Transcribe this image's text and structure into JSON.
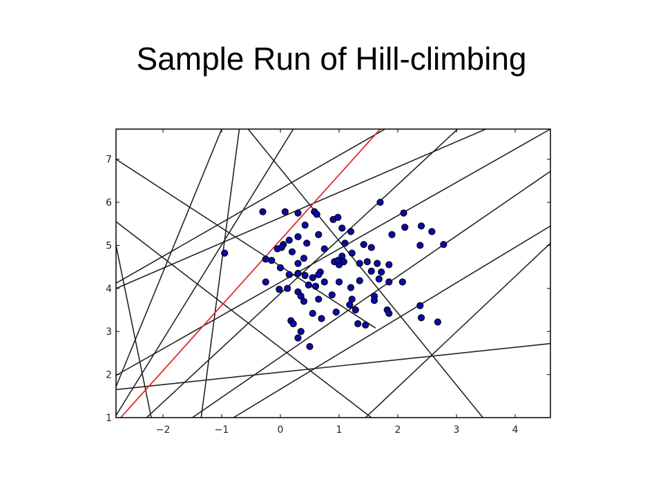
{
  "slide": {
    "title": "Sample Run of Hill-climbing"
  },
  "chart_data": {
    "type": "scatter",
    "title": "",
    "xlabel": "",
    "ylabel": "",
    "xlim": [
      -2.8,
      4.6
    ],
    "ylim": [
      1,
      7.7
    ],
    "grid": false,
    "legend": "none",
    "x_ticks": [
      -2,
      -1,
      0,
      1,
      2,
      3,
      4
    ],
    "y_ticks": [
      1,
      2,
      3,
      4,
      5,
      6,
      7
    ],
    "point_color": "#0a0aa8",
    "line_color": "#222222",
    "highlight_line_color": "#e02a2a",
    "points": [
      [
        -0.95,
        4.82
      ],
      [
        -0.3,
        5.78
      ],
      [
        0.08,
        5.78
      ],
      [
        0.3,
        5.75
      ],
      [
        0.58,
        5.78
      ],
      [
        0.62,
        5.72
      ],
      [
        0.42,
        5.47
      ],
      [
        0.9,
        5.6
      ],
      [
        0.98,
        5.65
      ],
      [
        1.05,
        5.4
      ],
      [
        1.2,
        5.32
      ],
      [
        0.65,
        5.25
      ],
      [
        0.3,
        5.2
      ],
      [
        0.15,
        5.12
      ],
      [
        0.05,
        5.02
      ],
      [
        0.02,
        4.95
      ],
      [
        -0.05,
        4.92
      ],
      [
        0.2,
        4.85
      ],
      [
        0.45,
        5.05
      ],
      [
        0.75,
        4.92
      ],
      [
        1.1,
        5.05
      ],
      [
        1.42,
        5.02
      ],
      [
        1.55,
        4.95
      ],
      [
        1.22,
        4.82
      ],
      [
        1.05,
        4.75
      ],
      [
        0.92,
        4.62
      ],
      [
        1.0,
        4.55
      ],
      [
        0.98,
        4.65
      ],
      [
        1.08,
        4.62
      ],
      [
        1.35,
        4.58
      ],
      [
        1.48,
        4.62
      ],
      [
        1.65,
        4.58
      ],
      [
        1.85,
        4.55
      ],
      [
        1.55,
        4.4
      ],
      [
        1.72,
        4.38
      ],
      [
        1.68,
        4.22
      ],
      [
        1.85,
        4.15
      ],
      [
        2.08,
        4.15
      ],
      [
        1.35,
        4.18
      ],
      [
        1.2,
        4.02
      ],
      [
        1.0,
        4.15
      ],
      [
        0.75,
        4.15
      ],
      [
        0.55,
        4.25
      ],
      [
        0.42,
        4.3
      ],
      [
        0.48,
        4.08
      ],
      [
        0.6,
        4.05
      ],
      [
        0.3,
        4.35
      ],
      [
        0.15,
        4.32
      ],
      [
        0.0,
        4.48
      ],
      [
        -0.25,
        4.68
      ],
      [
        -0.15,
        4.65
      ],
      [
        0.3,
        4.58
      ],
      [
        0.4,
        4.7
      ],
      [
        0.68,
        4.38
      ],
      [
        0.65,
        4.32
      ],
      [
        -0.25,
        4.15
      ],
      [
        -0.02,
        3.98
      ],
      [
        0.12,
        4.0
      ],
      [
        0.3,
        3.92
      ],
      [
        0.35,
        3.82
      ],
      [
        0.4,
        3.7
      ],
      [
        0.65,
        3.75
      ],
      [
        0.88,
        3.85
      ],
      [
        1.22,
        3.75
      ],
      [
        1.18,
        3.62
      ],
      [
        1.6,
        3.82
      ],
      [
        1.6,
        3.72
      ],
      [
        1.28,
        3.5
      ],
      [
        0.95,
        3.45
      ],
      [
        0.55,
        3.42
      ],
      [
        0.7,
        3.3
      ],
      [
        0.18,
        3.25
      ],
      [
        0.22,
        3.18
      ],
      [
        0.35,
        3.0
      ],
      [
        0.3,
        2.85
      ],
      [
        0.5,
        2.65
      ],
      [
        1.32,
        3.18
      ],
      [
        1.45,
        3.15
      ],
      [
        1.82,
        3.5
      ],
      [
        1.85,
        3.42
      ],
      [
        1.7,
        6.0
      ],
      [
        2.1,
        5.75
      ],
      [
        2.12,
        5.42
      ],
      [
        1.9,
        5.25
      ],
      [
        2.4,
        5.45
      ],
      [
        2.58,
        5.32
      ],
      [
        2.38,
        5.0
      ],
      [
        2.78,
        5.02
      ],
      [
        2.38,
        3.6
      ],
      [
        2.4,
        3.32
      ],
      [
        2.68,
        3.22
      ]
    ],
    "lines": [
      {
        "x1": -2.8,
        "y1": 5.0,
        "x2": -2.2,
        "y2": 1.0
      },
      {
        "x1": -2.8,
        "y1": 1.72,
        "x2": -1.0,
        "y2": 7.7
      },
      {
        "x1": -2.8,
        "y1": 1.05,
        "x2": 0.22,
        "y2": 7.7
      },
      {
        "x1": -2.8,
        "y1": 4.12,
        "x2": 1.78,
        "y2": 7.7
      },
      {
        "x1": -2.8,
        "y1": 1.65,
        "x2": 4.6,
        "y2": 2.72
      },
      {
        "x1": -2.8,
        "y1": 7.0,
        "x2": 1.62,
        "y2": 3.08
      },
      {
        "x1": -2.8,
        "y1": 5.55,
        "x2": 1.55,
        "y2": 1.0
      },
      {
        "x1": -2.28,
        "y1": 1.0,
        "x2": 3.02,
        "y2": 7.7
      },
      {
        "x1": -1.5,
        "y1": 1.0,
        "x2": 4.6,
        "y2": 6.72
      },
      {
        "x1": -0.8,
        "y1": 1.0,
        "x2": 4.6,
        "y2": 5.45
      },
      {
        "x1": 1.45,
        "y1": 1.0,
        "x2": 4.6,
        "y2": 5.05
      },
      {
        "x1": -2.8,
        "y1": 1.98,
        "x2": 4.6,
        "y2": 7.7
      },
      {
        "x1": -0.55,
        "y1": 7.7,
        "x2": 3.45,
        "y2": 1.0
      },
      {
        "x1": -1.35,
        "y1": 1.0,
        "x2": -0.7,
        "y2": 7.7
      },
      {
        "x1": -2.8,
        "y1": 4.0,
        "x2": 3.5,
        "y2": 7.7
      }
    ],
    "highlight_line": {
      "x1": -2.72,
      "y1": 1.0,
      "x2": 1.7,
      "y2": 7.7
    }
  }
}
